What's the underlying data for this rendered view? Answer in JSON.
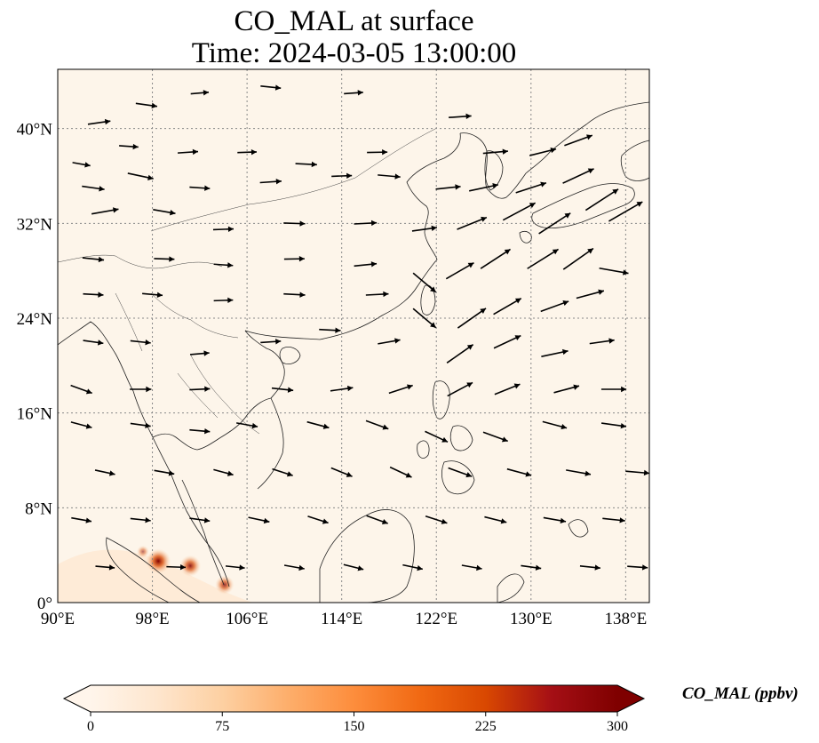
{
  "title": {
    "line1": "CO_MAL at surface",
    "line2": "Time: 2024-03-05 13:00:00"
  },
  "map": {
    "lon_range": [
      90,
      140
    ],
    "lat_range": [
      0,
      45
    ],
    "background_color": "#fdf5ea",
    "coastline_color": "#222222",
    "grid": "dotted",
    "lon_ticks": [
      {
        "value": 90,
        "label": "90°E"
      },
      {
        "value": 98,
        "label": "98°E"
      },
      {
        "value": 106,
        "label": "106°E"
      },
      {
        "value": 114,
        "label": "114°E"
      },
      {
        "value": 122,
        "label": "122°E"
      },
      {
        "value": 130,
        "label": "130°E"
      },
      {
        "value": 138,
        "label": "138°E"
      }
    ],
    "lat_ticks": [
      {
        "value": 0,
        "label": "0°"
      },
      {
        "value": 8,
        "label": "8°N"
      },
      {
        "value": 16,
        "label": "16°N"
      },
      {
        "value": 24,
        "label": "24°N"
      },
      {
        "value": 32,
        "label": "32°N"
      },
      {
        "value": 40,
        "label": "40°N"
      }
    ],
    "hotspots": [
      {
        "lon": 98.5,
        "lat": 3.5,
        "value": 300
      },
      {
        "lon": 101.2,
        "lat": 3.1,
        "value": 240
      },
      {
        "lon": 104.1,
        "lat": 1.5,
        "value": 200
      },
      {
        "lon": 97.2,
        "lat": 4.3,
        "value": 90
      }
    ],
    "wind_vectors": [
      [
        93.5,
        40.5,
        8,
        0.6
      ],
      [
        97.5,
        42,
        -8,
        0.55
      ],
      [
        102,
        43,
        5,
        0.4
      ],
      [
        108,
        43.5,
        -6,
        0.5
      ],
      [
        115,
        43,
        4,
        0.45
      ],
      [
        92,
        37,
        -10,
        0.4
      ],
      [
        96,
        38.5,
        -4,
        0.45
      ],
      [
        101,
        38,
        4,
        0.5
      ],
      [
        106,
        38,
        2,
        0.45
      ],
      [
        111,
        37,
        -3,
        0.55
      ],
      [
        117,
        38,
        1,
        0.5
      ],
      [
        124,
        41,
        4,
        0.6
      ],
      [
        127,
        38,
        5,
        0.7
      ],
      [
        131,
        38,
        14,
        0.8
      ],
      [
        134,
        39,
        20,
        0.9
      ],
      [
        93,
        35,
        -8,
        0.6
      ],
      [
        97,
        36,
        -12,
        0.75
      ],
      [
        102,
        35,
        -4,
        0.5
      ],
      [
        108,
        35.5,
        4,
        0.55
      ],
      [
        114,
        36,
        2,
        0.5
      ],
      [
        118,
        36,
        -5,
        0.6
      ],
      [
        123,
        35,
        6,
        0.7
      ],
      [
        126,
        35,
        12,
        0.9
      ],
      [
        130,
        35,
        18,
        1.0
      ],
      [
        134,
        36,
        25,
        1.1
      ],
      [
        94,
        33,
        10,
        0.8
      ],
      [
        99,
        33,
        -10,
        0.6
      ],
      [
        104,
        31.5,
        2,
        0.5
      ],
      [
        110,
        32,
        -2,
        0.55
      ],
      [
        116,
        32,
        3,
        0.6
      ],
      [
        121,
        31.5,
        8,
        0.7
      ],
      [
        125,
        32,
        22,
        1.0
      ],
      [
        129,
        33,
        28,
        1.2
      ],
      [
        132,
        32,
        33,
        1.25
      ],
      [
        136,
        34,
        33,
        1.3
      ],
      [
        138,
        33,
        30,
        1.3
      ],
      [
        93,
        29,
        -6,
        0.55
      ],
      [
        99,
        29,
        -2,
        0.5
      ],
      [
        104,
        28.5,
        -4,
        0.45
      ],
      [
        110,
        29,
        1,
        0.5
      ],
      [
        116,
        28.5,
        6,
        0.6
      ],
      [
        121,
        27,
        -40,
        0.9
      ],
      [
        124,
        28,
        30,
        1.0
      ],
      [
        127,
        29,
        33,
        1.15
      ],
      [
        131,
        29,
        32,
        1.2
      ],
      [
        134,
        29,
        35,
        1.2
      ],
      [
        137,
        28,
        -10,
        0.9
      ],
      [
        93,
        26,
        -3,
        0.5
      ],
      [
        98,
        26,
        -5,
        0.5
      ],
      [
        104,
        25.5,
        2,
        0.45
      ],
      [
        110,
        26,
        -3,
        0.55
      ],
      [
        117,
        26,
        3,
        0.6
      ],
      [
        121,
        24,
        -40,
        0.9
      ],
      [
        125,
        24,
        35,
        1.1
      ],
      [
        128,
        25,
        30,
        1.0
      ],
      [
        132,
        25,
        20,
        0.9
      ],
      [
        135,
        26,
        15,
        0.85
      ],
      [
        93,
        22,
        -8,
        0.5
      ],
      [
        97,
        22,
        -6,
        0.5
      ],
      [
        102,
        21,
        5,
        0.45
      ],
      [
        108,
        22,
        4,
        0.5
      ],
      [
        113,
        23,
        -3,
        0.55
      ],
      [
        118,
        22,
        10,
        0.6
      ],
      [
        124,
        21,
        35,
        1.0
      ],
      [
        128,
        22,
        25,
        0.9
      ],
      [
        132,
        21,
        12,
        0.8
      ],
      [
        136,
        22,
        8,
        0.7
      ],
      [
        92,
        18,
        -20,
        0.6
      ],
      [
        97,
        18,
        0,
        0.55
      ],
      [
        102,
        18,
        3,
        0.5
      ],
      [
        109,
        18,
        -6,
        0.55
      ],
      [
        114,
        18,
        8,
        0.6
      ],
      [
        119,
        18,
        18,
        0.7
      ],
      [
        124,
        18,
        28,
        0.85
      ],
      [
        128,
        18,
        22,
        0.8
      ],
      [
        133,
        18,
        15,
        0.75
      ],
      [
        137,
        18,
        0,
        0.7
      ],
      [
        92,
        15,
        -15,
        0.55
      ],
      [
        97,
        15,
        -8,
        0.5
      ],
      [
        102,
        14.5,
        -5,
        0.5
      ],
      [
        106,
        15,
        -10,
        0.55
      ],
      [
        112,
        15,
        -15,
        0.6
      ],
      [
        117,
        15,
        -20,
        0.65
      ],
      [
        122,
        14,
        -25,
        0.7
      ],
      [
        127,
        14,
        -20,
        0.75
      ],
      [
        132,
        15,
        -15,
        0.7
      ],
      [
        137,
        15,
        -8,
        0.7
      ],
      [
        94,
        11,
        -12,
        0.5
      ],
      [
        99,
        11,
        -10,
        0.5
      ],
      [
        104,
        11,
        -15,
        0.5
      ],
      [
        109,
        11,
        -18,
        0.55
      ],
      [
        114,
        11,
        -22,
        0.6
      ],
      [
        119,
        11,
        -25,
        0.65
      ],
      [
        124,
        11,
        -20,
        0.7
      ],
      [
        129,
        11,
        -15,
        0.7
      ],
      [
        134,
        11,
        -10,
        0.7
      ],
      [
        139,
        11,
        -5,
        0.65
      ],
      [
        92,
        7,
        -10,
        0.5
      ],
      [
        97,
        7,
        -6,
        0.5
      ],
      [
        102,
        7,
        -8,
        0.5
      ],
      [
        107,
        7,
        -12,
        0.55
      ],
      [
        112,
        7,
        -18,
        0.55
      ],
      [
        117,
        7,
        -20,
        0.6
      ],
      [
        122,
        7,
        -18,
        0.6
      ],
      [
        127,
        7,
        -14,
        0.6
      ],
      [
        132,
        7,
        -10,
        0.6
      ],
      [
        137,
        7,
        -6,
        0.6
      ],
      [
        94,
        3,
        -5,
        0.45
      ],
      [
        100,
        3,
        -2,
        0.45
      ],
      [
        105,
        3,
        -6,
        0.45
      ],
      [
        110,
        3,
        -10,
        0.5
      ],
      [
        115,
        3,
        -14,
        0.5
      ],
      [
        120,
        3,
        -12,
        0.5
      ],
      [
        125,
        3,
        -10,
        0.5
      ],
      [
        130,
        3,
        -8,
        0.5
      ],
      [
        135,
        3,
        -6,
        0.5
      ],
      [
        139,
        3,
        -4,
        0.5
      ]
    ]
  },
  "colorbar": {
    "title": "CO_MAL (ppbv)",
    "ticks": [
      {
        "value": 0,
        "label": "0"
      },
      {
        "value": 75,
        "label": "75"
      },
      {
        "value": 150,
        "label": "150"
      },
      {
        "value": 225,
        "label": "225"
      },
      {
        "value": 300,
        "label": "300"
      }
    ],
    "range": [
      0,
      300
    ],
    "extend": "both",
    "colormap": [
      "#fff5eb",
      "#fee6ce",
      "#fdd0a2",
      "#fdae6b",
      "#fd8d3c",
      "#f16913",
      "#d94801",
      "#a50f15",
      "#7f0000"
    ]
  }
}
